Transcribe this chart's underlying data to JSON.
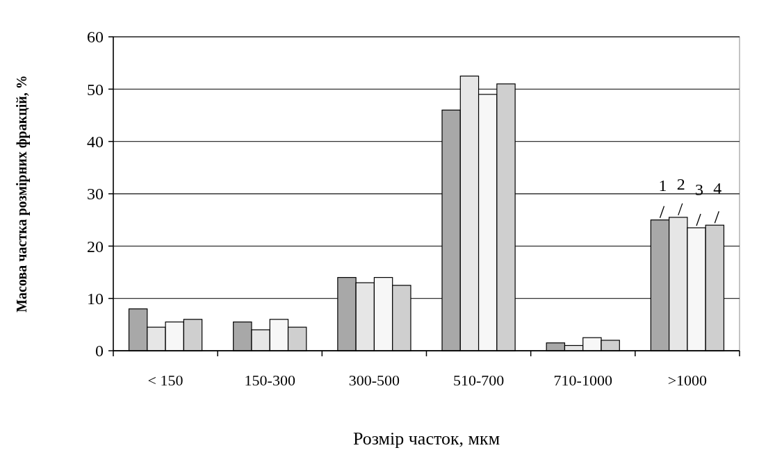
{
  "chart_data": {
    "type": "bar",
    "xlabel": "Розмір часток, мкм",
    "ylabel": "Масова частка розмірних фракцій, %",
    "categories": [
      "< 150",
      "150-300",
      "300-500",
      "510-700",
      "710-1000",
      ">1000"
    ],
    "series": [
      {
        "name": "1",
        "color": "#a8a8a8",
        "values": [
          8,
          5.5,
          14,
          46,
          1.5,
          25
        ]
      },
      {
        "name": "2",
        "color": "#e6e6e6",
        "values": [
          4.5,
          4,
          13,
          52.5,
          1,
          25.5
        ]
      },
      {
        "name": "3",
        "color": "#f7f7f7",
        "values": [
          5.5,
          6,
          14,
          49,
          2.5,
          23.5
        ]
      },
      {
        "name": "4",
        "color": "#cfcfcf",
        "values": [
          6,
          4.5,
          12.5,
          51,
          2,
          24
        ]
      }
    ],
    "ylim": [
      0,
      60
    ],
    "yticks": [
      0,
      10,
      20,
      30,
      40,
      50,
      60
    ],
    "grid": "y"
  }
}
